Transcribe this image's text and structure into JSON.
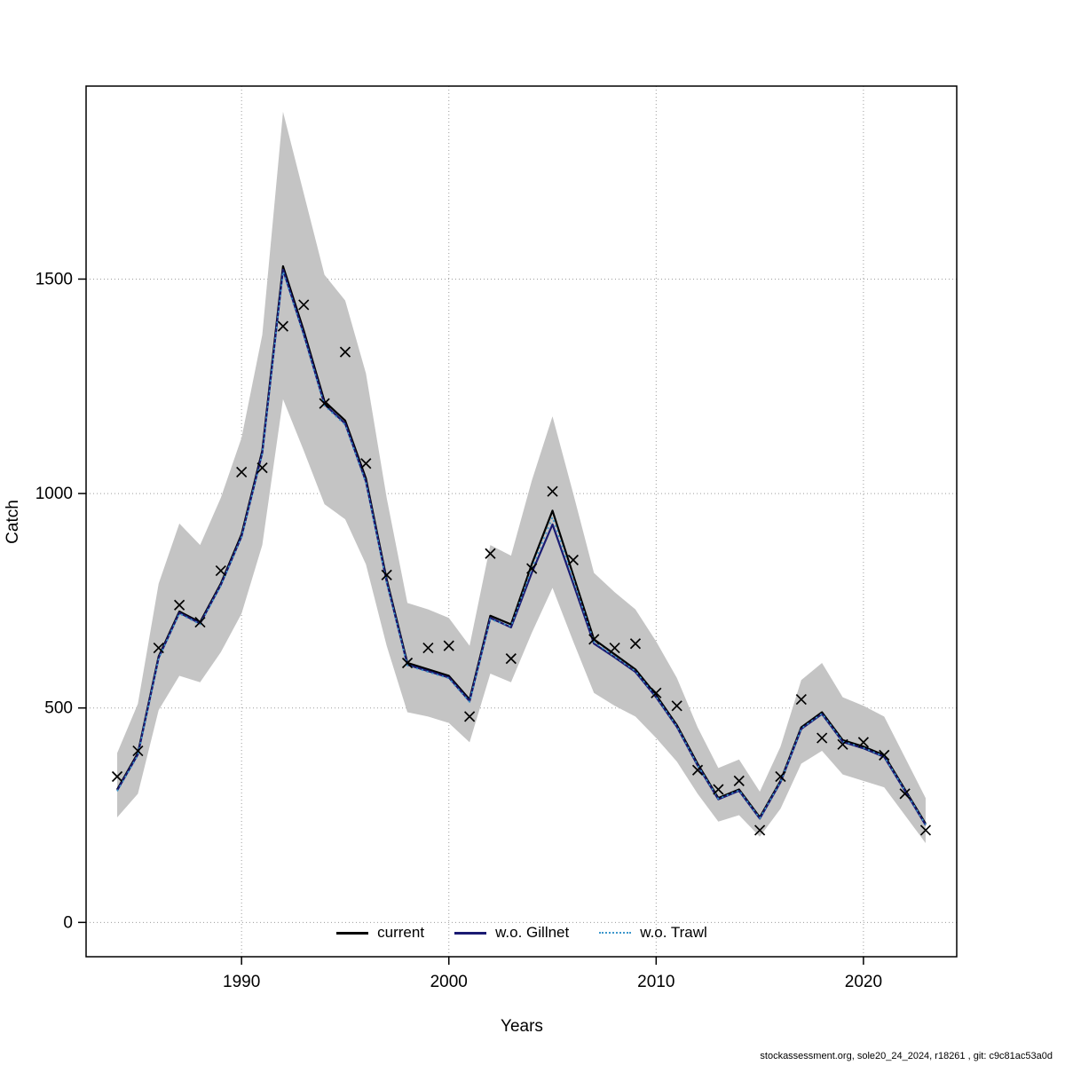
{
  "axes": {
    "x_label": "Years",
    "y_label": "Catch"
  },
  "footer": {
    "source": "stockassessment.org, sole20_24_2024, r18261 , git: c9c81ac53a0d"
  },
  "chart_data": {
    "type": "line",
    "title": "",
    "xlabel": "Years",
    "ylabel": "Catch",
    "xlim": [
      1982.5,
      2024.5
    ],
    "ylim": [
      -80,
      1950
    ],
    "x_ticks": [
      1990,
      2000,
      2010,
      2020
    ],
    "y_ticks": [
      0,
      500,
      1000,
      1500
    ],
    "grid": true,
    "grid_color": "#9c9c9c",
    "legend_position": "bottom-center-inside",
    "years": [
      1984,
      1985,
      1986,
      1987,
      1988,
      1989,
      1990,
      1991,
      1992,
      1993,
      1994,
      1995,
      1996,
      1997,
      1998,
      1999,
      2000,
      2001,
      2002,
      2003,
      2004,
      2005,
      2006,
      2007,
      2008,
      2009,
      2010,
      2011,
      2012,
      2013,
      2014,
      2015,
      2016,
      2017,
      2018,
      2019,
      2020,
      2021,
      2022,
      2023
    ],
    "band": {
      "name": "confidence-band",
      "color": "#c4c4c4",
      "lower": [
        245,
        300,
        495,
        575,
        560,
        630,
        720,
        880,
        1220,
        1100,
        975,
        940,
        835,
        645,
        490,
        480,
        465,
        420,
        580,
        560,
        675,
        780,
        655,
        535,
        505,
        480,
        430,
        375,
        300,
        235,
        250,
        200,
        265,
        370,
        400,
        345,
        330,
        315,
        250,
        185
      ],
      "upper": [
        395,
        510,
        790,
        930,
        880,
        990,
        1130,
        1370,
        1890,
        1700,
        1510,
        1450,
        1280,
        990,
        745,
        730,
        710,
        645,
        880,
        855,
        1030,
        1180,
        1000,
        815,
        770,
        730,
        655,
        570,
        455,
        360,
        380,
        305,
        410,
        565,
        605,
        525,
        505,
        480,
        385,
        290
      ]
    },
    "series": [
      {
        "name": "current",
        "color": "#000000",
        "style": "solid",
        "width": 2.2,
        "values": [
          310,
          395,
          620,
          725,
          700,
          790,
          905,
          1100,
          1530,
          1380,
          1215,
          1170,
          1035,
          800,
          605,
          590,
          575,
          520,
          715,
          695,
          835,
          960,
          810,
          660,
          625,
          590,
          530,
          460,
          370,
          290,
          310,
          245,
          330,
          455,
          490,
          425,
          410,
          390,
          310,
          230
        ]
      },
      {
        "name": "w.o. Gillnet",
        "color": "#1a1a72",
        "style": "solid",
        "width": 2.2,
        "values": [
          308,
          392,
          617,
          722,
          697,
          787,
          900,
          1095,
          1522,
          1372,
          1208,
          1163,
          1028,
          795,
          601,
          586,
          571,
          516,
          710,
          688,
          815,
          928,
          790,
          650,
          618,
          584,
          525,
          456,
          366,
          287,
          307,
          242,
          327,
          451,
          486,
          421,
          406,
          386,
          307,
          227
        ]
      },
      {
        "name": "w.o. Trawl",
        "color": "#3d97cc",
        "style": "dotted",
        "width": 1.8,
        "values": [
          306,
          390,
          615,
          720,
          695,
          785,
          898,
          1092,
          1518,
          1368,
          1205,
          1160,
          1025,
          792,
          599,
          584,
          569,
          514,
          707,
          690,
          825,
          945,
          800,
          654,
          620,
          586,
          526,
          457,
          367,
          288,
          308,
          243,
          328,
          452,
          487,
          422,
          407,
          387,
          308,
          228
        ]
      }
    ],
    "observations": {
      "name": "observed-catch",
      "marker": "x",
      "color": "#000000",
      "values": [
        340,
        400,
        640,
        740,
        700,
        820,
        1050,
        1060,
        1390,
        1440,
        1210,
        1330,
        1070,
        810,
        605,
        640,
        645,
        480,
        860,
        615,
        825,
        1005,
        845,
        660,
        640,
        650,
        535,
        505,
        355,
        310,
        330,
        215,
        340,
        520,
        430,
        415,
        420,
        390,
        300,
        215
      ]
    }
  }
}
